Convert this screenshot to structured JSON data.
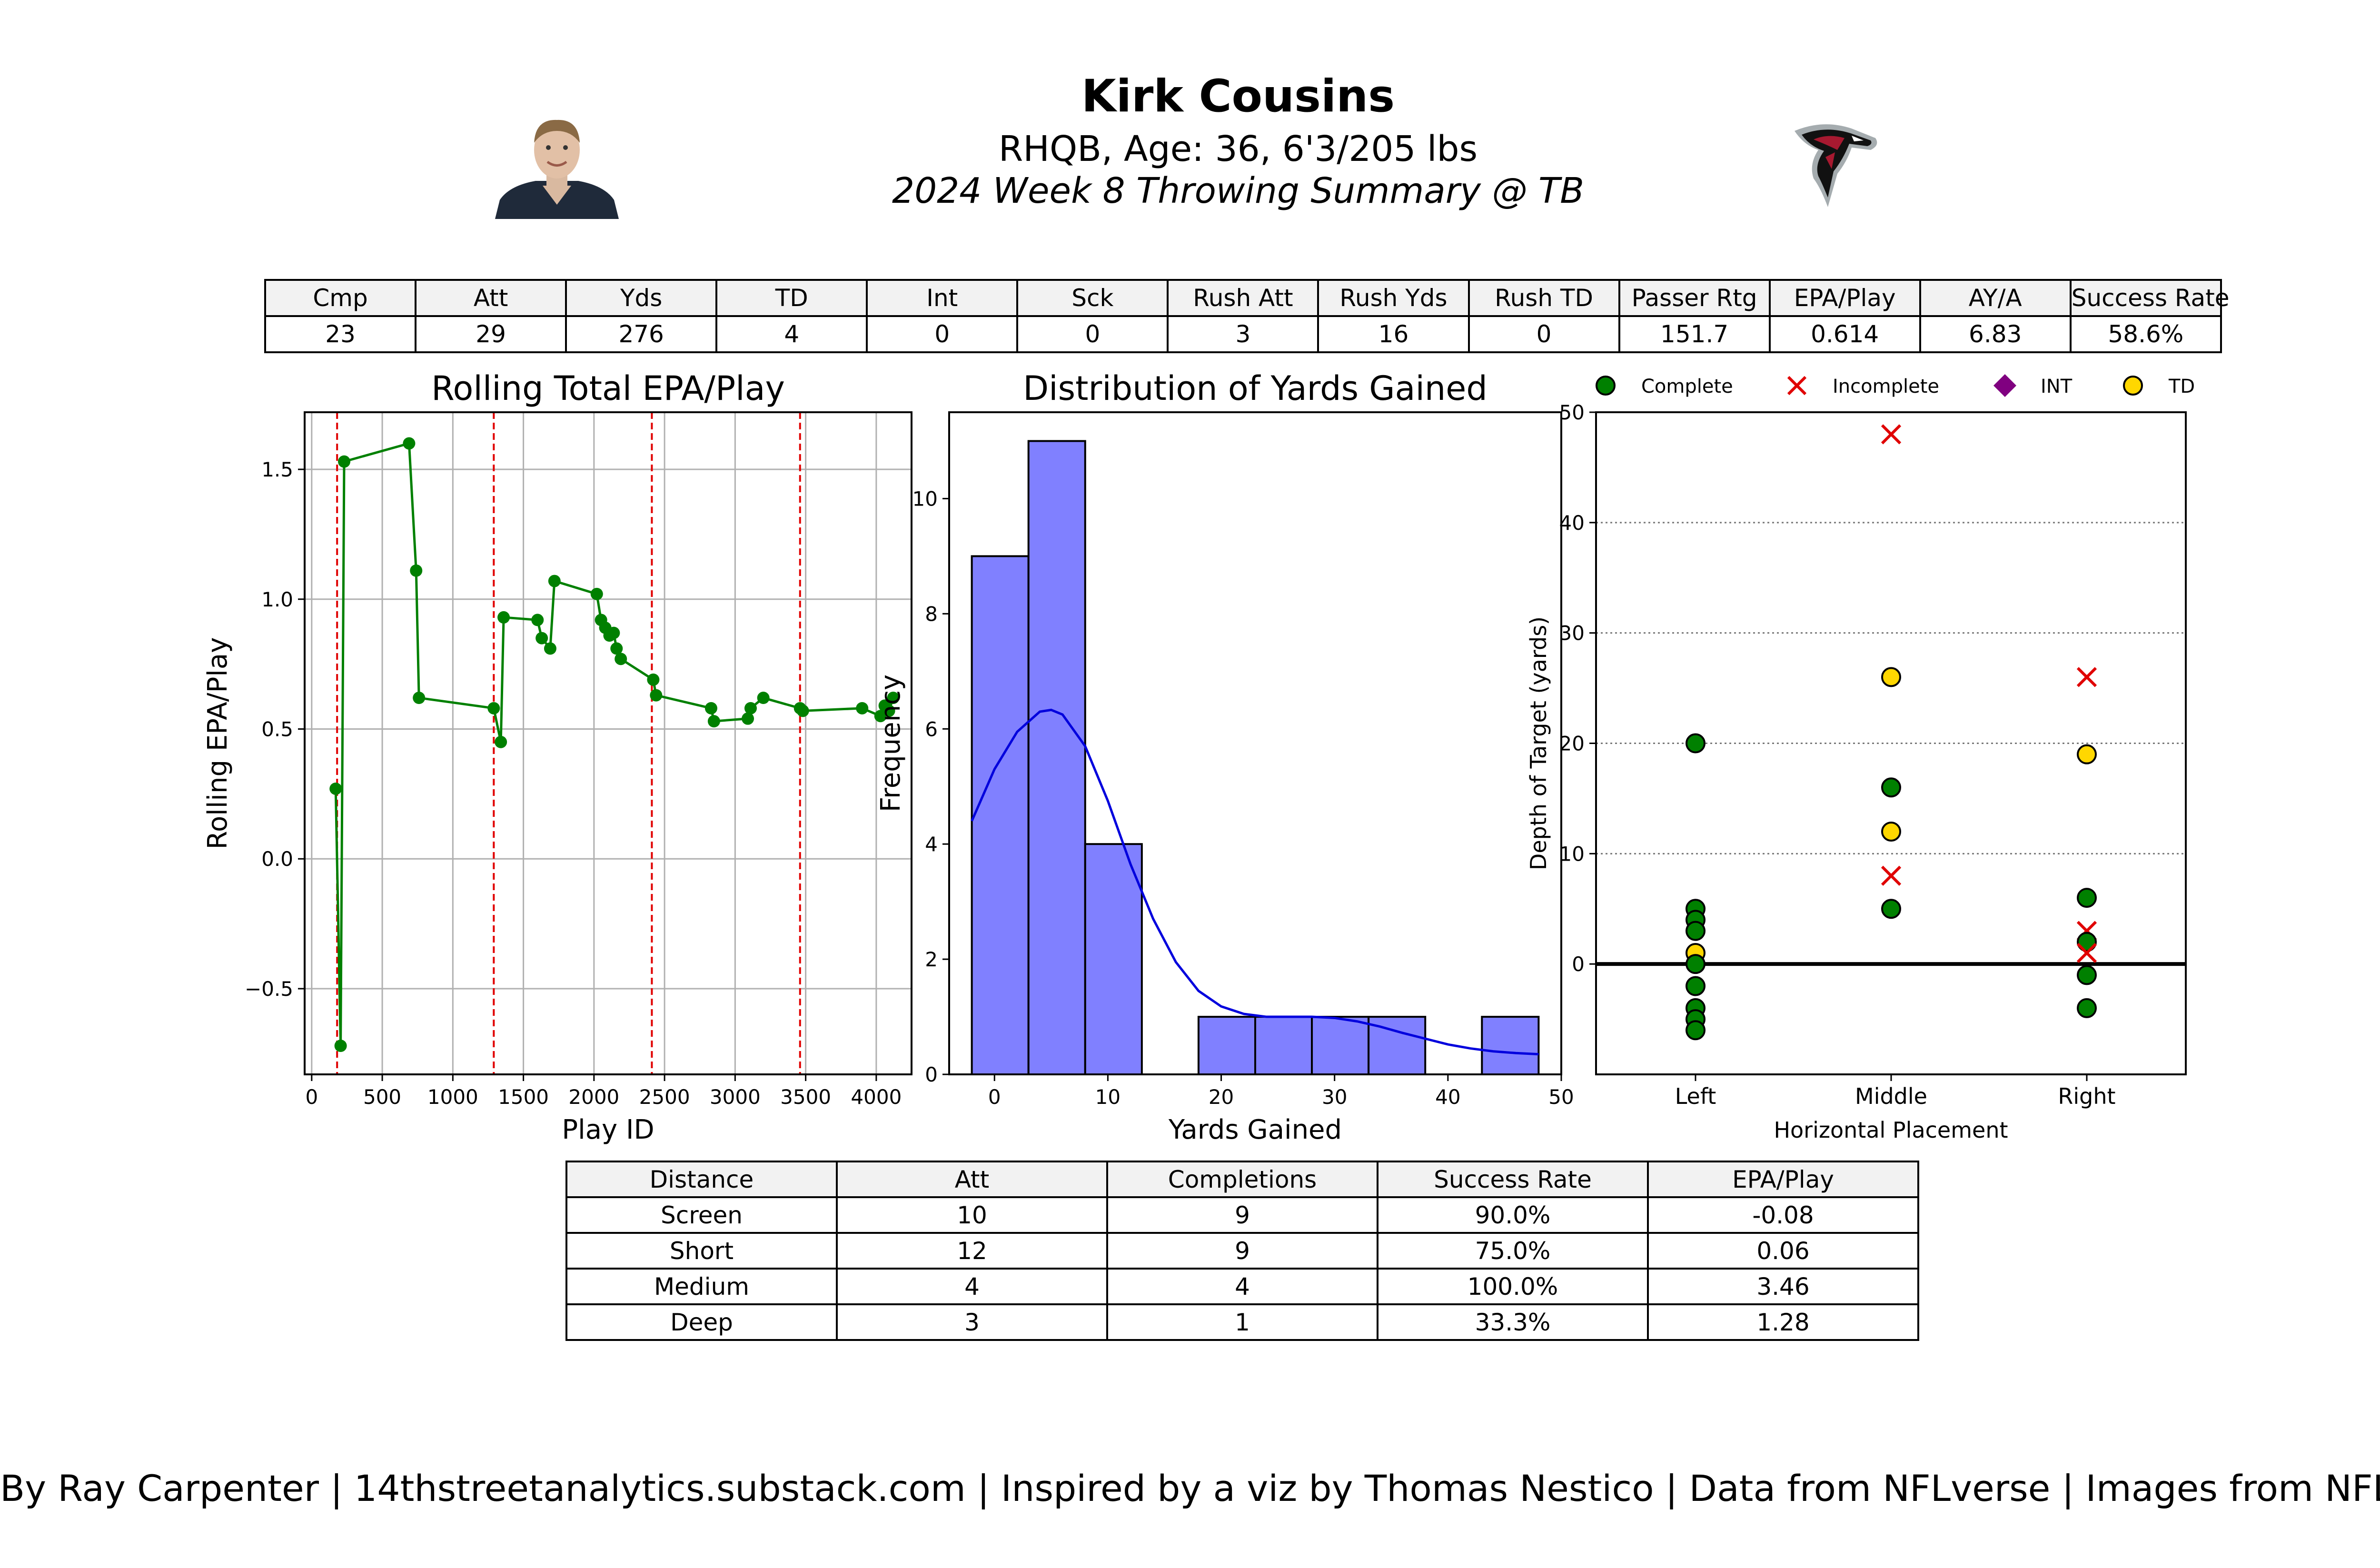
{
  "header": {
    "player_name": "Kirk Cousins",
    "player_info": "RHQB, Age: 36, 6'3/205 lbs",
    "game_title": "2024 Week 8 Throwing Summary @ TB"
  },
  "colors": {
    "complete": "#008000",
    "incomplete": "#e00000",
    "int": "#800080",
    "td": "#ffd700",
    "hist_fill": "#8080ff",
    "kde_line": "#0000dd",
    "epa_line": "#008000",
    "drive_line": "#e00000",
    "falcons_red": "#a71930"
  },
  "stats_table": {
    "headers": [
      "Cmp",
      "Att",
      "Yds",
      "TD",
      "Int",
      "Sck",
      "Rush Att",
      "Rush Yds",
      "Rush TD",
      "Passer Rtg",
      "EPA/Play",
      "AY/A",
      "Success Rate"
    ],
    "values": [
      "23",
      "29",
      "276",
      "4",
      "0",
      "0",
      "3",
      "16",
      "0",
      "151.7",
      "0.614",
      "6.83",
      "58.6%"
    ]
  },
  "distance_table": {
    "headers": [
      "Distance",
      "Att",
      "Completions",
      "Success Rate",
      "EPA/Play"
    ],
    "rows": [
      [
        "Screen",
        "10",
        "9",
        "90.0%",
        "-0.08"
      ],
      [
        "Short",
        "12",
        "9",
        "75.0%",
        "0.06"
      ],
      [
        "Medium",
        "4",
        "4",
        "100.0%",
        "3.46"
      ],
      [
        "Deep",
        "3",
        "1",
        "33.3%",
        "1.28"
      ]
    ]
  },
  "footer": "By Ray Carpenter | 14thstreetanalytics.substack.com | Inspired by a viz by Thomas Nestico | Data from NFLverse | Images from NFL.com",
  "chart_data": [
    {
      "type": "line",
      "title": "Rolling Total EPA/Play",
      "xlabel": "Play ID",
      "ylabel": "Rolling EPA/Play",
      "xlim": [
        -50,
        4250
      ],
      "ylim": [
        -0.83,
        1.72
      ],
      "xticks": [
        0,
        500,
        1000,
        1500,
        2000,
        2500,
        3000,
        3500,
        4000
      ],
      "yticks": [
        -0.5,
        0.0,
        0.5,
        1.0,
        1.5
      ],
      "ytick_labels": [
        "−0.5",
        "0.0",
        "0.5",
        "1.0",
        "1.5"
      ],
      "grid": true,
      "drive_lines": [
        180,
        1290,
        2410,
        3460
      ],
      "x": [
        170,
        205,
        230,
        690,
        740,
        760,
        1290,
        1340,
        1360,
        1600,
        1630,
        1690,
        1720,
        2020,
        2050,
        2080,
        2110,
        2140,
        2160,
        2190,
        2420,
        2440,
        2830,
        2850,
        3090,
        3110,
        3200,
        3460,
        3480,
        3900,
        4030,
        4060,
        4090,
        4120
      ],
      "y": [
        0.27,
        -0.72,
        1.53,
        1.6,
        1.11,
        0.62,
        0.58,
        0.45,
        0.93,
        0.92,
        0.85,
        0.81,
        1.07,
        1.02,
        0.92,
        0.89,
        0.86,
        0.87,
        0.81,
        0.77,
        0.69,
        0.63,
        0.58,
        0.53,
        0.54,
        0.58,
        0.62,
        0.58,
        0.57,
        0.58,
        0.55,
        0.59,
        0.57,
        0.62
      ]
    },
    {
      "type": "histogram",
      "title": "Distribution of Yards Gained",
      "xlabel": "Yards Gained",
      "ylabel": "Frequency",
      "xlim": [
        -4,
        50
      ],
      "ylim": [
        0,
        11.5
      ],
      "xticks": [
        0,
        10,
        20,
        30,
        40,
        50
      ],
      "yticks": [
        0,
        2,
        4,
        6,
        8,
        10
      ],
      "bin_edges": [
        -2,
        3,
        8,
        13,
        18,
        23,
        28,
        33,
        38,
        43,
        48
      ],
      "counts": [
        9,
        11,
        4,
        0,
        1,
        1,
        1,
        1,
        0,
        1
      ],
      "kde_x": [
        -2,
        0,
        2,
        4,
        5,
        6,
        8,
        10,
        12,
        14,
        16,
        18,
        20,
        22,
        24,
        26,
        28,
        30,
        32,
        34,
        36,
        38,
        40,
        42,
        44,
        46,
        48
      ],
      "kde_y": [
        4.4,
        5.3,
        5.95,
        6.3,
        6.33,
        6.25,
        5.7,
        4.75,
        3.65,
        2.7,
        1.95,
        1.45,
        1.18,
        1.05,
        1.0,
        1.0,
        1.0,
        0.98,
        0.92,
        0.83,
        0.72,
        0.62,
        0.52,
        0.45,
        0.4,
        0.37,
        0.35
      ]
    },
    {
      "type": "scatter",
      "xlabel": "Horizontal Placement",
      "ylabel": "Depth of Target (yards)",
      "categories": [
        "Left",
        "Middle",
        "Right"
      ],
      "ylim": [
        -10,
        50
      ],
      "yticks": [
        0,
        10,
        20,
        30,
        40,
        50
      ],
      "grid": "horizontal-dotted",
      "legend": [
        "Complete",
        "Incomplete",
        "INT",
        "TD"
      ],
      "legend_position": "top",
      "points": [
        {
          "x": "Left",
          "y": 20,
          "result": "Complete"
        },
        {
          "x": "Left",
          "y": 5,
          "result": "Complete"
        },
        {
          "x": "Left",
          "y": 4,
          "result": "Complete"
        },
        {
          "x": "Left",
          "y": 3,
          "result": "Complete"
        },
        {
          "x": "Left",
          "y": 1,
          "result": "TD"
        },
        {
          "x": "Left",
          "y": 0,
          "result": "Complete"
        },
        {
          "x": "Left",
          "y": -2,
          "result": "Complete"
        },
        {
          "x": "Left",
          "y": -4,
          "result": "Complete"
        },
        {
          "x": "Left",
          "y": -5,
          "result": "Complete"
        },
        {
          "x": "Left",
          "y": -6,
          "result": "Complete"
        },
        {
          "x": "Middle",
          "y": 48,
          "result": "Incomplete"
        },
        {
          "x": "Middle",
          "y": 26,
          "result": "TD"
        },
        {
          "x": "Middle",
          "y": 16,
          "result": "Complete"
        },
        {
          "x": "Middle",
          "y": 12,
          "result": "TD"
        },
        {
          "x": "Middle",
          "y": 8,
          "result": "Incomplete"
        },
        {
          "x": "Middle",
          "y": 5,
          "result": "Complete"
        },
        {
          "x": "Right",
          "y": 26,
          "result": "Incomplete"
        },
        {
          "x": "Right",
          "y": 19,
          "result": "TD"
        },
        {
          "x": "Right",
          "y": 6,
          "result": "Complete"
        },
        {
          "x": "Right",
          "y": 3,
          "result": "Incomplete"
        },
        {
          "x": "Right",
          "y": 2,
          "result": "Complete"
        },
        {
          "x": "Right",
          "y": 1,
          "result": "Incomplete"
        },
        {
          "x": "Right",
          "y": -1,
          "result": "Complete"
        },
        {
          "x": "Right",
          "y": -4,
          "result": "Complete"
        }
      ]
    }
  ]
}
